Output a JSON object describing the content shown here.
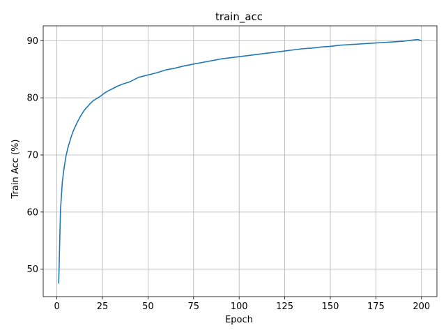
{
  "chart_data": {
    "type": "line",
    "title": "train_acc",
    "xlabel": "Epoch",
    "ylabel": "Train Acc (%)",
    "xlim": [
      -7.5,
      208.5
    ],
    "ylim": [
      45.2,
      92.6
    ],
    "xticks": [
      0,
      25,
      50,
      75,
      100,
      125,
      150,
      175,
      200
    ],
    "yticks": [
      50,
      60,
      70,
      80,
      90
    ],
    "grid": true,
    "series": [
      {
        "color": "#1f77b4",
        "x": [
          1,
          2,
          3,
          4,
          5,
          6,
          7,
          8,
          9,
          10,
          11,
          12,
          13,
          14,
          15,
          16,
          17,
          18,
          19,
          20,
          22,
          24,
          26,
          28,
          30,
          33,
          36,
          40,
          45,
          50,
          55,
          60,
          65,
          70,
          75,
          80,
          85,
          90,
          95,
          100,
          105,
          110,
          115,
          120,
          125,
          130,
          135,
          140,
          145,
          150,
          155,
          160,
          165,
          170,
          175,
          180,
          185,
          190,
          195,
          198,
          200
        ],
        "y": [
          47.5,
          60.5,
          65.3,
          67.8,
          69.8,
          71.2,
          72.3,
          73.3,
          74.2,
          74.9,
          75.6,
          76.2,
          76.8,
          77.3,
          77.8,
          78.2,
          78.5,
          78.9,
          79.2,
          79.5,
          79.9,
          80.3,
          80.8,
          81.2,
          81.5,
          82.0,
          82.4,
          82.8,
          83.6,
          84.0,
          84.4,
          84.9,
          85.2,
          85.6,
          85.9,
          86.2,
          86.5,
          86.8,
          87.0,
          87.2,
          87.4,
          87.6,
          87.8,
          88.0,
          88.2,
          88.4,
          88.6,
          88.7,
          88.9,
          89.0,
          89.2,
          89.3,
          89.4,
          89.5,
          89.6,
          89.7,
          89.8,
          89.9,
          90.1,
          90.2,
          90.0
        ]
      }
    ]
  }
}
